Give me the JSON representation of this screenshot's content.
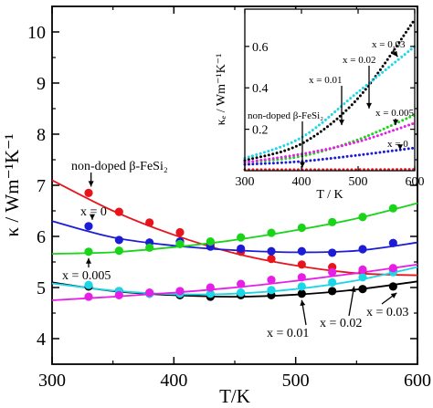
{
  "chart_data": [
    {
      "type": "line",
      "xlabel": "T/K",
      "ylabel": "κ / Wm⁻¹K⁻¹",
      "xlim": [
        300,
        600
      ],
      "ylim": [
        3.5,
        10.5
      ],
      "xticks": [
        300,
        400,
        500,
        600
      ],
      "yticks": [
        4,
        5,
        6,
        7,
        8,
        9,
        10
      ],
      "series": [
        {
          "name": "non-doped β-FeSi₂",
          "color": "#e8141c",
          "x": [
            330,
            355,
            380,
            405,
            430,
            455,
            480,
            505,
            530,
            555,
            580
          ],
          "values": [
            6.85,
            6.48,
            6.27,
            6.08,
            5.85,
            5.7,
            5.56,
            5.45,
            5.4,
            5.32,
            5.33
          ],
          "fit": [
            [
              300,
              7.1
            ],
            [
              350,
              6.5
            ],
            [
              400,
              6.03
            ],
            [
              450,
              5.67
            ],
            [
              500,
              5.43
            ],
            [
              550,
              5.28
            ],
            [
              600,
              5.24
            ]
          ]
        },
        {
          "name": "x = 0",
          "color": "#1c1cd6",
          "x": [
            330,
            355,
            380,
            405,
            430,
            455,
            480,
            505,
            530,
            555,
            580
          ],
          "values": [
            6.2,
            5.93,
            5.88,
            5.9,
            5.8,
            5.76,
            5.71,
            5.71,
            5.68,
            5.75,
            5.87
          ],
          "fit": [
            [
              300,
              6.3
            ],
            [
              350,
              5.98
            ],
            [
              400,
              5.82
            ],
            [
              450,
              5.73
            ],
            [
              500,
              5.69
            ],
            [
              550,
              5.72
            ],
            [
              600,
              5.88
            ]
          ]
        },
        {
          "name": "x = 0.005",
          "color": "#19d419",
          "x": [
            330,
            355,
            380,
            405,
            430,
            455,
            480,
            505,
            530,
            555,
            580
          ],
          "values": [
            5.7,
            5.72,
            5.78,
            5.85,
            5.9,
            5.98,
            6.07,
            6.17,
            6.28,
            6.38,
            6.55
          ],
          "fit": [
            [
              300,
              5.66
            ],
            [
              350,
              5.69
            ],
            [
              400,
              5.79
            ],
            [
              450,
              5.93
            ],
            [
              500,
              6.12
            ],
            [
              550,
              6.35
            ],
            [
              600,
              6.65
            ]
          ]
        },
        {
          "name": "x = 0.01",
          "color": "#000000",
          "x": [
            330,
            355,
            380,
            405,
            430,
            455,
            480,
            505,
            530,
            555,
            580
          ],
          "values": [
            5.02,
            4.93,
            4.88,
            4.85,
            4.82,
            4.85,
            4.85,
            4.88,
            4.93,
            4.97,
            5.02
          ],
          "fit": [
            [
              300,
              5.1
            ],
            [
              350,
              4.93
            ],
            [
              400,
              4.85
            ],
            [
              450,
              4.82
            ],
            [
              500,
              4.86
            ],
            [
              550,
              4.96
            ],
            [
              600,
              5.12
            ]
          ]
        },
        {
          "name": "x = 0.02",
          "color": "#1ad6e6",
          "x": [
            330,
            355,
            380,
            405,
            430,
            455,
            480,
            505,
            530,
            555,
            580
          ],
          "values": [
            5.05,
            4.93,
            4.88,
            4.88,
            4.88,
            4.9,
            4.95,
            5.02,
            5.1,
            5.2,
            5.3
          ],
          "fit": [
            [
              300,
              5.08
            ],
            [
              350,
              4.94
            ],
            [
              400,
              4.87
            ],
            [
              450,
              4.88
            ],
            [
              500,
              4.97
            ],
            [
              550,
              5.14
            ],
            [
              600,
              5.4
            ]
          ]
        },
        {
          "name": "x = 0.03",
          "color": "#e61ee6",
          "x": [
            330,
            355,
            380,
            405,
            430,
            455,
            480,
            505,
            530,
            555,
            580
          ],
          "values": [
            4.82,
            4.85,
            4.9,
            4.93,
            5.0,
            5.07,
            5.15,
            5.2,
            5.3,
            5.35,
            5.38
          ],
          "fit": [
            [
              300,
              4.75
            ],
            [
              350,
              4.82
            ],
            [
              400,
              4.9
            ],
            [
              450,
              5.0
            ],
            [
              500,
              5.13
            ],
            [
              550,
              5.28
            ],
            [
              600,
              5.45
            ]
          ]
        }
      ],
      "annotations": [
        {
          "text": "non-doped β-FeSi₂"
        },
        {
          "text": "x = 0"
        },
        {
          "text": "x = 0.005"
        },
        {
          "text": "x = 0.01"
        },
        {
          "text": "x = 0.02"
        },
        {
          "text": "x = 0.03"
        }
      ]
    },
    {
      "type": "line",
      "xlabel": "T / K",
      "ylabel": "κₑ / Wm⁻¹K⁻¹",
      "xlim": [
        300,
        600
      ],
      "ylim": [
        0,
        0.78
      ],
      "xticks": [
        300,
        400,
        500,
        600
      ],
      "yticks": [
        0.2,
        0.4,
        0.6
      ],
      "series": [
        {
          "name": "non-doped β-FeSi₂",
          "color": "#e8141c",
          "curve": [
            [
              300,
              0.005
            ],
            [
              450,
              0.005
            ],
            [
              600,
              0.006
            ]
          ]
        },
        {
          "name": "x = 0",
          "color": "#1c1cd6",
          "curve": [
            [
              300,
              0.03
            ],
            [
              400,
              0.045
            ],
            [
              500,
              0.075
            ],
            [
              600,
              0.11
            ]
          ]
        },
        {
          "name": "x = 0.005",
          "color": "#19d419",
          "curve": [
            [
              300,
              0.04
            ],
            [
              400,
              0.07
            ],
            [
              500,
              0.15
            ],
            [
              600,
              0.27
            ]
          ]
        },
        {
          "name": "x = 0.01",
          "color": "#000000",
          "curve": [
            [
              300,
              0.05
            ],
            [
              400,
              0.13
            ],
            [
              500,
              0.35
            ],
            [
              600,
              0.73
            ]
          ]
        },
        {
          "name": "x = 0.02",
          "color": "#1ad6e6",
          "curve": [
            [
              300,
              0.06
            ],
            [
              400,
              0.16
            ],
            [
              500,
              0.38
            ],
            [
              600,
              0.6
            ]
          ]
        },
        {
          "name": "x = 0.03",
          "color": "#e61ee6",
          "curve": [
            [
              300,
              0.04
            ],
            [
              400,
              0.08
            ],
            [
              500,
              0.14
            ],
            [
              600,
              0.23
            ]
          ]
        }
      ],
      "annotations": [
        {
          "text": "x = 0.03"
        },
        {
          "text": "x = 0.02"
        },
        {
          "text": "x = 0.01"
        },
        {
          "text": "non-doped β-FeSi₂"
        },
        {
          "text": "x = 0.005"
        },
        {
          "text": "x = 0"
        }
      ]
    }
  ]
}
